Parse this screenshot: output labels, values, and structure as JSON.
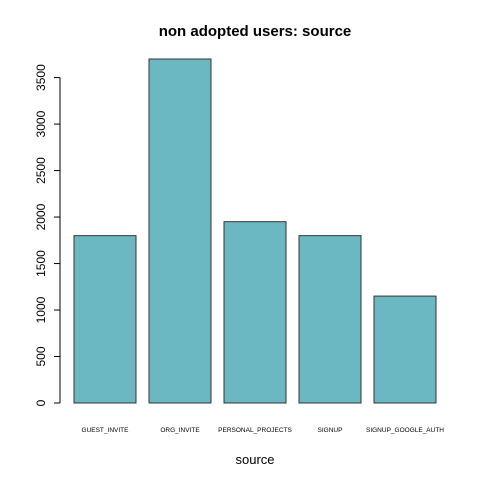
{
  "chart_data": {
    "type": "bar",
    "title": "non adopted users: source",
    "xlabel": "source",
    "ylabel": "",
    "categories": [
      "GUEST_INVITE",
      "ORG_INVITE",
      "PERSONAL_PROJECTS",
      "SIGNUP",
      "SIGNUP_GOOGLE_AUTH"
    ],
    "values": [
      1800,
      3700,
      1950,
      1800,
      1150
    ],
    "yticks": [
      0,
      500,
      1000,
      1500,
      2000,
      2500,
      3000,
      3500
    ],
    "ylim": [
      0,
      3700
    ],
    "bar_color": "#6bb8c2",
    "grid": false,
    "legend": "none"
  }
}
